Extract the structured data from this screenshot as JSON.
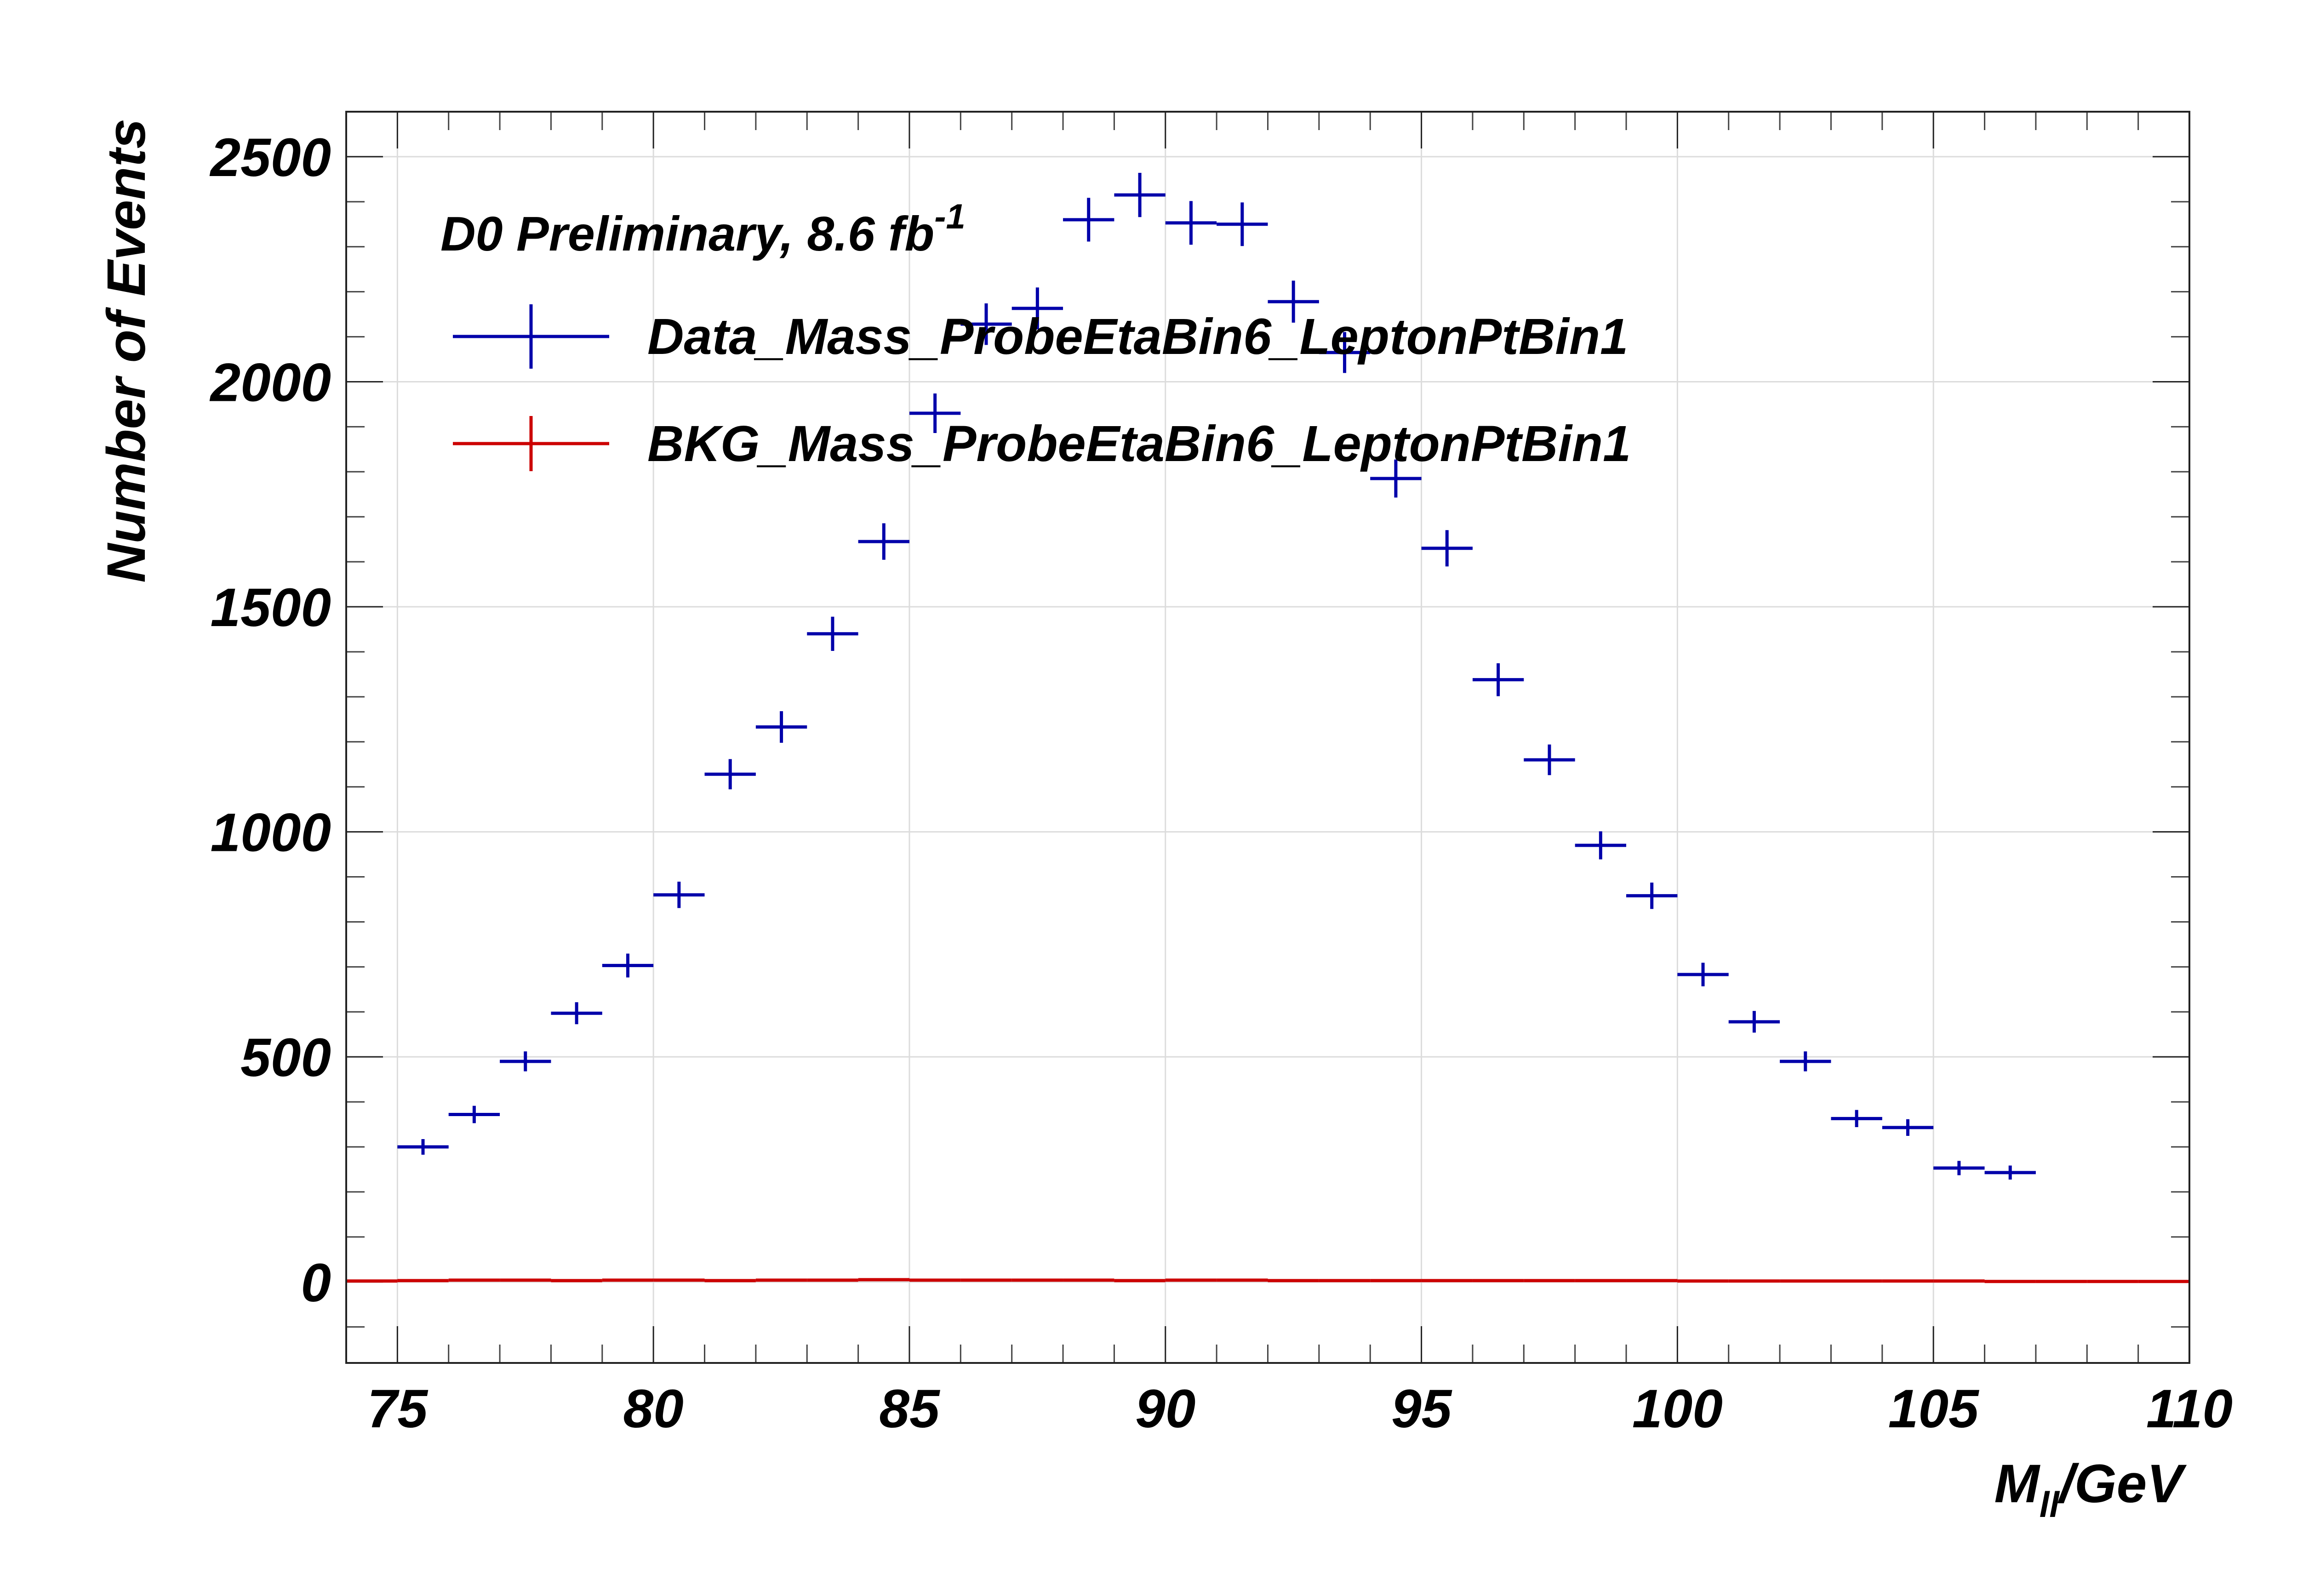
{
  "chart_data": {
    "type": "scatter",
    "annotation": "D0 Preliminary, 8.6 fb",
    "annotation_superscript": "-1",
    "xlabel_main": "M",
    "xlabel_sub": "ll",
    "xlabel_rest": "/GeV",
    "ylabel": "Number of Events",
    "xlim": [
      74,
      110
    ],
    "ylim": [
      -180,
      2600
    ],
    "x_ticks": [
      75,
      80,
      85,
      90,
      95,
      100,
      105,
      110
    ],
    "x_tick_labels": [
      "75",
      "80",
      "85",
      "90",
      "95",
      "100",
      "105",
      "110"
    ],
    "y_ticks": [
      0,
      500,
      1000,
      1500,
      2000,
      2500
    ],
    "y_tick_labels": [
      "0",
      "500",
      "1000",
      "1500",
      "2000",
      "2500"
    ],
    "grid": true,
    "legend_position": "top-left",
    "bin_width": 1,
    "series": [
      {
        "name": "Data_Mass_ProbeEtaBin6_LeptonPtBin1",
        "color": "#0000aa",
        "x": [
          75.5,
          76.5,
          77.5,
          78.5,
          79.5,
          80.5,
          81.5,
          82.5,
          83.5,
          84.5,
          85.5,
          86.5,
          87.5,
          88.5,
          89.5,
          90.5,
          91.5,
          92.5,
          93.5,
          94.5,
          95.5,
          96.5,
          97.5,
          98.5,
          99.5,
          100.5,
          101.5,
          102.5,
          103.5,
          104.5,
          105.5,
          106.5
        ],
        "y": [
          300,
          372,
          490,
          597,
          703,
          860,
          1128,
          1233,
          1440,
          1645,
          1930,
          2128,
          2163,
          2360,
          2415,
          2353,
          2350,
          2178,
          2065,
          1785,
          1630,
          1338,
          1160,
          970,
          858,
          683,
          578,
          490,
          363,
          343,
          253,
          243
        ]
      },
      {
        "name": "BKG_Mass_ProbeEtaBin6_LeptonPtBin1",
        "color": "#cc0000",
        "x_start": 74,
        "x_end": 110,
        "y": [
          2,
          3,
          4,
          4,
          3,
          4,
          4,
          3,
          4,
          4,
          5,
          4,
          4,
          4,
          4,
          3,
          4,
          4,
          3,
          3,
          3,
          3,
          3,
          3,
          3,
          3,
          2,
          2,
          2,
          2,
          2,
          2,
          1,
          1,
          1,
          1
        ]
      }
    ]
  }
}
